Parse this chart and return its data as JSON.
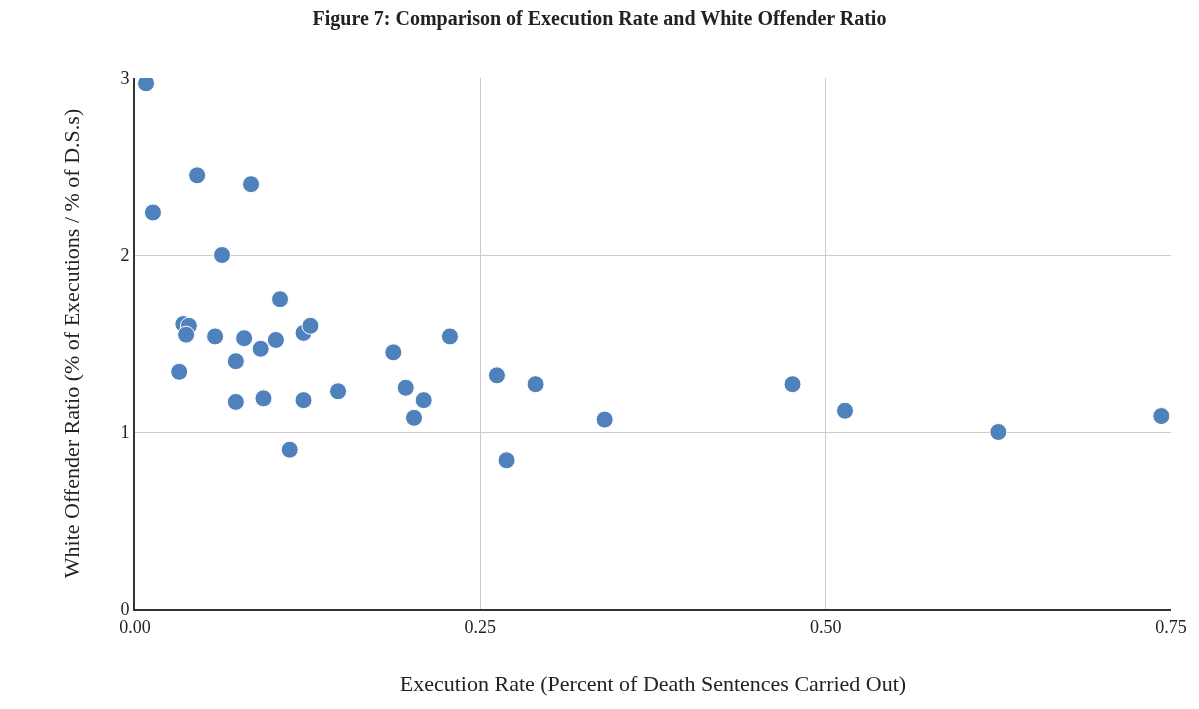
{
  "chart_data": {
    "type": "scatter",
    "title": "Figure 7: Comparison of Execution Rate and White Offender Ratio",
    "xlabel": "Execution Rate (Percent of Death Sentences Carried Out)",
    "ylabel": "White Offender Ratio (% of Executions / % of D.S.s)",
    "x": [
      0.008,
      0.013,
      0.045,
      0.084,
      0.063,
      0.105,
      0.035,
      0.039,
      0.037,
      0.058,
      0.079,
      0.091,
      0.102,
      0.122,
      0.127,
      0.032,
      0.073,
      0.073,
      0.093,
      0.122,
      0.112,
      0.147,
      0.187,
      0.196,
      0.209,
      0.202,
      0.228,
      0.262,
      0.269,
      0.29,
      0.34,
      0.476,
      0.514,
      0.625,
      0.743
    ],
    "values": [
      2.97,
      2.24,
      2.45,
      2.4,
      2.0,
      1.75,
      1.61,
      1.6,
      1.55,
      1.54,
      1.53,
      1.47,
      1.52,
      1.56,
      1.6,
      1.34,
      1.4,
      1.17,
      1.19,
      1.18,
      0.9,
      1.23,
      1.45,
      1.25,
      1.18,
      1.08,
      1.54,
      1.32,
      0.84,
      1.27,
      1.07,
      1.27,
      1.12,
      1.0,
      1.09
    ],
    "color": "#4f81bd",
    "marker": "circle",
    "xlim": [
      0,
      0.75
    ],
    "xticks": [
      {
        "value": 0,
        "label": "0.00"
      },
      0.25,
      {
        "value": 0.5,
        "label": "0.50"
      },
      0.75
    ],
    "ylim": [
      0,
      3
    ],
    "yticks": [
      0,
      1,
      2,
      3
    ],
    "grid": true,
    "legend": false
  }
}
